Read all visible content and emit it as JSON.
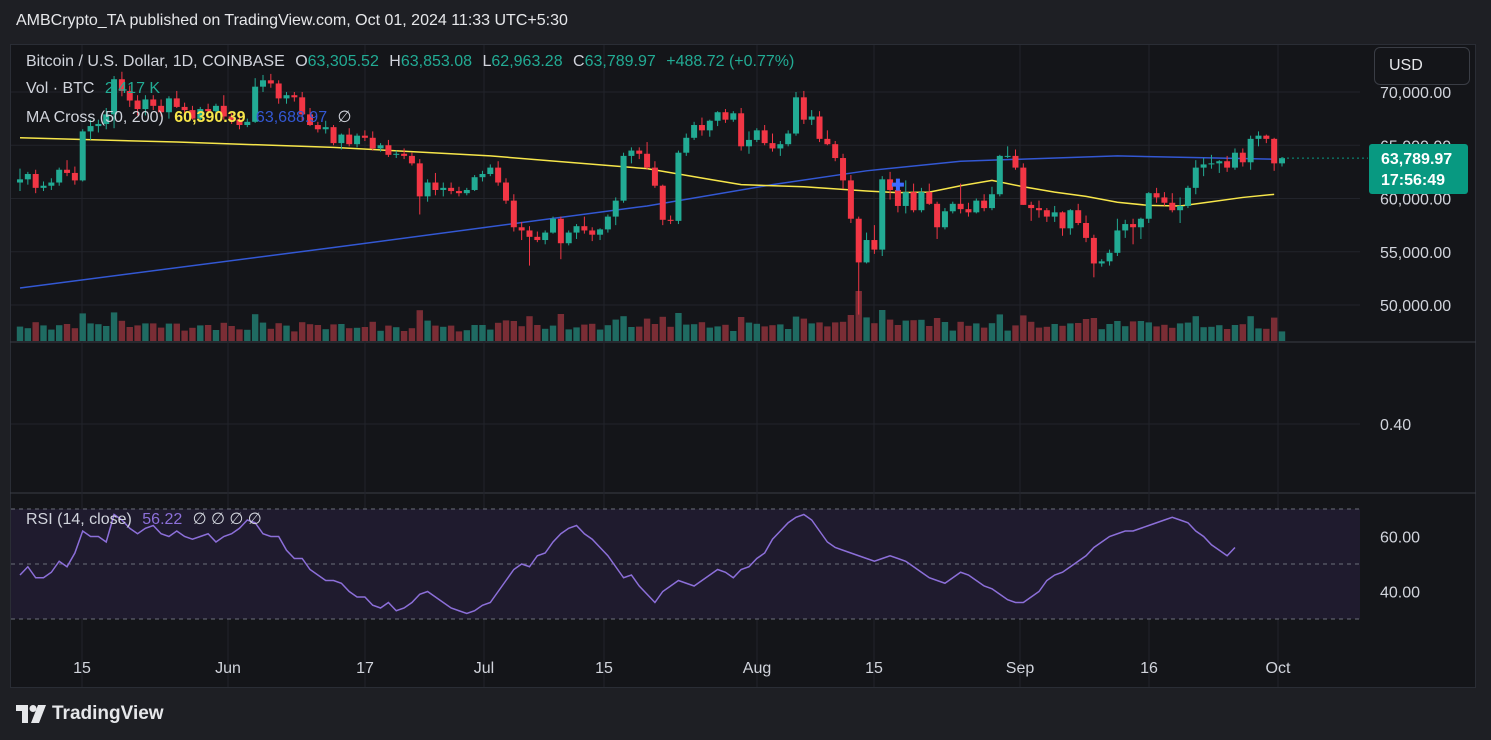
{
  "header": {
    "text": "AMBCrypto_TA published on TradingView.com, Oct 01, 2024 11:33 UTC+5:30"
  },
  "legend": {
    "symbol": "Bitcoin / U.S. Dollar, 1D, COINBASE",
    "o_label": "O",
    "o_value": "63,305.52",
    "h_label": "H",
    "h_value": "63,853.08",
    "l_label": "L",
    "l_value": "62,963.28",
    "c_label": "C",
    "c_value": "63,789.97",
    "change": "+488.72 (+0.77%)",
    "vol_label": "Vol · BTC",
    "vol_value": "2.417 K",
    "ma_label": "MA Cross (50, 200)",
    "ma50_value": "60,390.39",
    "ma200_value": "63,688.97",
    "ma_extra": "∅",
    "rsi_label": "RSI (14, close)",
    "rsi_value": "56.22",
    "rsi_extra": "∅  ∅  ∅  ∅"
  },
  "currency_button": "USD",
  "price_tag": {
    "price": "63,789.97",
    "countdown": "17:56:49"
  },
  "footer": {
    "brand": "TradingView",
    "logo_icon": "tradingview-logo-icon"
  },
  "colors": {
    "up": "#22ab94",
    "down": "#f23645",
    "ma50": "#f7e64a",
    "ma200": "#3358d4",
    "rsi": "#8c6fd9",
    "vol_up": "#1f6b62",
    "vol_down": "#7a2d35",
    "bg": "#141519"
  },
  "chart_data": {
    "type": "candlestick",
    "symbol": "Bitcoin / U.S. Dollar",
    "interval": "1D",
    "price_axis": {
      "ticks": [
        "70,000.00",
        "65,000.00",
        "60,000.00",
        "55,000.00",
        "50,000.00"
      ],
      "ylim": [
        48000,
        71000
      ]
    },
    "x_ticks": [
      "15",
      "Jun",
      "17",
      "Jul",
      "15",
      "Aug",
      "15",
      "Sep",
      "16",
      "Oct"
    ],
    "indicator_pane": {
      "ticks": [
        "0.40"
      ]
    },
    "rsi_axis": {
      "ticks": [
        "60.00",
        "40.00"
      ],
      "ylim": [
        30,
        70
      ],
      "bands": [
        30,
        50,
        70
      ]
    },
    "candles": [
      [
        61500,
        62800,
        60700,
        61800
      ],
      [
        61800,
        62500,
        61300,
        62300
      ],
      [
        62300,
        62700,
        60500,
        61000
      ],
      [
        61000,
        61600,
        60700,
        61200
      ],
      [
        61200,
        61900,
        60800,
        61500
      ],
      [
        61500,
        62900,
        61200,
        62700
      ],
      [
        62700,
        63600,
        62100,
        62400
      ],
      [
        62400,
        63000,
        61300,
        61700
      ],
      [
        61700,
        66500,
        61600,
        66300
      ],
      [
        66300,
        67400,
        65500,
        66800
      ],
      [
        66800,
        67400,
        66200,
        67000
      ],
      [
        67000,
        68500,
        66500,
        67900
      ],
      [
        67900,
        71500,
        66600,
        71200
      ],
      [
        71200,
        71900,
        69600,
        70100
      ],
      [
        70100,
        70600,
        68600,
        69200
      ],
      [
        69200,
        69700,
        67800,
        68400
      ],
      [
        68400,
        69700,
        67800,
        69300
      ],
      [
        69300,
        69700,
        68300,
        68700
      ],
      [
        68700,
        69300,
        67700,
        68100
      ],
      [
        68100,
        69600,
        67500,
        69400
      ],
      [
        69400,
        70100,
        68500,
        68600
      ],
      [
        68600,
        69000,
        67900,
        68300
      ],
      [
        68300,
        68700,
        67400,
        67500
      ],
      [
        67500,
        68600,
        67200,
        68400
      ],
      [
        68400,
        68900,
        67900,
        68200
      ],
      [
        68200,
        68900,
        67900,
        68700
      ],
      [
        68700,
        69700,
        67400,
        67700
      ],
      [
        67700,
        68000,
        67000,
        67400
      ],
      [
        67400,
        67900,
        66500,
        66900
      ],
      [
        66900,
        67500,
        66700,
        67200
      ],
      [
        67200,
        71300,
        67100,
        70500
      ],
      [
        70500,
        71600,
        70000,
        71100
      ],
      [
        71100,
        71700,
        70400,
        70800
      ],
      [
        70800,
        71100,
        68900,
        69400
      ],
      [
        69400,
        70000,
        68900,
        69700
      ],
      [
        69700,
        70000,
        69100,
        69500
      ],
      [
        69500,
        70000,
        67300,
        67900
      ],
      [
        67900,
        68500,
        66800,
        66900
      ],
      [
        66900,
        67200,
        66200,
        66500
      ],
      [
        66500,
        67300,
        66100,
        66700
      ],
      [
        66700,
        66900,
        65000,
        65200
      ],
      [
        65200,
        66100,
        64600,
        66000
      ],
      [
        66000,
        66600,
        64900,
        65100
      ],
      [
        65100,
        66100,
        64800,
        65900
      ],
      [
        65900,
        66400,
        65400,
        65700
      ],
      [
        65700,
        66300,
        64500,
        64700
      ],
      [
        64700,
        65200,
        64400,
        65000
      ],
      [
        65000,
        65500,
        63900,
        64100
      ],
      [
        64100,
        64500,
        63800,
        64200
      ],
      [
        64200,
        64700,
        63700,
        64000
      ],
      [
        64000,
        64300,
        63100,
        63300
      ],
      [
        63300,
        63700,
        58500,
        60200
      ],
      [
        60200,
        61800,
        59700,
        61500
      ],
      [
        61500,
        62400,
        60300,
        60800
      ],
      [
        60800,
        61500,
        60200,
        61000
      ],
      [
        61000,
        61500,
        60400,
        60700
      ],
      [
        60700,
        61100,
        60200,
        60500
      ],
      [
        60500,
        61000,
        60300,
        60800
      ],
      [
        60800,
        62200,
        60700,
        62000
      ],
      [
        62000,
        62600,
        61600,
        62300
      ],
      [
        62300,
        63200,
        62100,
        62900
      ],
      [
        62900,
        63500,
        61200,
        61500
      ],
      [
        61500,
        61900,
        59500,
        59800
      ],
      [
        59800,
        60400,
        56900,
        57300
      ],
      [
        57300,
        57800,
        56100,
        57000
      ],
      [
        57000,
        57400,
        53700,
        56400
      ],
      [
        56400,
        56900,
        55900,
        56100
      ],
      [
        56100,
        57000,
        55700,
        56800
      ],
      [
        56800,
        58300,
        56700,
        58100
      ],
      [
        58100,
        58300,
        54300,
        55800
      ],
      [
        55800,
        57000,
        55600,
        56800
      ],
      [
        56800,
        57600,
        56200,
        57400
      ],
      [
        57400,
        58300,
        56700,
        57000
      ],
      [
        57000,
        57300,
        56000,
        56600
      ],
      [
        56600,
        57200,
        56100,
        57100
      ],
      [
        57100,
        58500,
        56800,
        58300
      ],
      [
        58300,
        60100,
        57500,
        59800
      ],
      [
        59800,
        64300,
        59600,
        64000
      ],
      [
        64000,
        64800,
        63300,
        64500
      ],
      [
        64500,
        64800,
        63700,
        64200
      ],
      [
        64200,
        65300,
        62700,
        62900
      ],
      [
        62900,
        63500,
        61000,
        61200
      ],
      [
        61200,
        61300,
        57500,
        58000
      ],
      [
        58000,
        58400,
        57600,
        57900
      ],
      [
        57900,
        64500,
        57600,
        64300
      ],
      [
        64300,
        66100,
        64000,
        65700
      ],
      [
        65700,
        67200,
        65500,
        66900
      ],
      [
        66900,
        67600,
        65900,
        66400
      ],
      [
        66400,
        67400,
        65800,
        67300
      ],
      [
        67300,
        68200,
        66800,
        68100
      ],
      [
        68100,
        68400,
        67100,
        67400
      ],
      [
        67400,
        68200,
        67200,
        68000
      ],
      [
        68000,
        68500,
        64500,
        64900
      ],
      [
        64900,
        66300,
        64200,
        65500
      ],
      [
        65500,
        66600,
        65300,
        66400
      ],
      [
        66400,
        66900,
        65000,
        65200
      ],
      [
        65200,
        66100,
        64400,
        64700
      ],
      [
        64700,
        65400,
        64000,
        65100
      ],
      [
        65100,
        66400,
        64900,
        66100
      ],
      [
        66100,
        70000,
        65900,
        69500
      ],
      [
        69500,
        70100,
        67000,
        67400
      ],
      [
        67400,
        68300,
        66900,
        67700
      ],
      [
        67700,
        68200,
        65300,
        65600
      ],
      [
        65600,
        66400,
        65000,
        65100
      ],
      [
        65100,
        65400,
        63500,
        63800
      ],
      [
        63800,
        64200,
        60900,
        61700
      ],
      [
        61700,
        62200,
        57700,
        58100
      ],
      [
        58100,
        58300,
        49100,
        54000
      ],
      [
        54000,
        56800,
        53900,
        56100
      ],
      [
        56100,
        57500,
        54800,
        55200
      ],
      [
        55200,
        62100,
        54600,
        61800
      ],
      [
        61800,
        62500,
        59900,
        60800
      ],
      [
        60800,
        61200,
        58700,
        59300
      ],
      [
        59300,
        61700,
        58600,
        60600
      ],
      [
        60600,
        61400,
        58700,
        58900
      ],
      [
        58900,
        61000,
        58700,
        60600
      ],
      [
        60600,
        61400,
        59400,
        59500
      ],
      [
        59500,
        59700,
        56200,
        57300
      ],
      [
        57300,
        59100,
        57100,
        58800
      ],
      [
        58800,
        59700,
        58600,
        59500
      ],
      [
        59500,
        61400,
        58600,
        59000
      ],
      [
        59000,
        59600,
        58300,
        58700
      ],
      [
        58700,
        60000,
        58600,
        59800
      ],
      [
        59800,
        60400,
        58800,
        59100
      ],
      [
        59100,
        61100,
        58900,
        60400
      ],
      [
        60400,
        64100,
        60200,
        64000
      ],
      [
        64000,
        64900,
        63800,
        64000
      ],
      [
        64000,
        64600,
        62700,
        62900
      ],
      [
        62900,
        63300,
        59400,
        59400
      ],
      [
        59400,
        59700,
        57900,
        59100
      ],
      [
        59100,
        59800,
        58200,
        58900
      ],
      [
        58900,
        59100,
        57800,
        58300
      ],
      [
        58300,
        59300,
        57800,
        58700
      ],
      [
        58700,
        58800,
        56500,
        57200
      ],
      [
        57200,
        59000,
        56600,
        58900
      ],
      [
        58900,
        59500,
        57500,
        57700
      ],
      [
        57700,
        58400,
        55900,
        56300
      ],
      [
        56300,
        56600,
        52600,
        53900
      ],
      [
        53900,
        54300,
        53600,
        54100
      ],
      [
        54100,
        55200,
        53700,
        54900
      ],
      [
        54900,
        58100,
        54600,
        57000
      ],
      [
        57000,
        58000,
        56300,
        57600
      ],
      [
        57600,
        58100,
        55700,
        57300
      ],
      [
        57300,
        58200,
        56200,
        58100
      ],
      [
        58100,
        60600,
        57700,
        60500
      ],
      [
        60500,
        61000,
        59600,
        60100
      ],
      [
        60100,
        60600,
        59300,
        59600
      ],
      [
        59600,
        60500,
        58700,
        58900
      ],
      [
        58900,
        60100,
        57700,
        59300
      ],
      [
        59300,
        61200,
        59100,
        61000
      ],
      [
        61000,
        63600,
        60400,
        62900
      ],
      [
        62900,
        63800,
        62100,
        63200
      ],
      [
        63200,
        64100,
        62800,
        63300
      ],
      [
        63300,
        63600,
        62400,
        63500
      ],
      [
        63500,
        64000,
        62500,
        62900
      ],
      [
        62900,
        64700,
        62700,
        64300
      ],
      [
        64300,
        64700,
        63000,
        63400
      ],
      [
        63400,
        65900,
        62700,
        65600
      ],
      [
        65600,
        66300,
        64900,
        65900
      ],
      [
        65900,
        66000,
        65200,
        65600
      ],
      [
        65600,
        65700,
        62600,
        63300
      ],
      [
        63300,
        63900,
        63000,
        63790
      ]
    ],
    "ma50": [
      [
        0,
        65700
      ],
      [
        20,
        65300
      ],
      [
        40,
        64800
      ],
      [
        60,
        64000
      ],
      [
        80,
        62800
      ],
      [
        88,
        61800
      ],
      [
        92,
        61300
      ],
      [
        100,
        61100
      ],
      [
        108,
        60700
      ],
      [
        112,
        60550
      ],
      [
        116,
        60600
      ],
      [
        120,
        61200
      ],
      [
        124,
        61700
      ],
      [
        128,
        61100
      ],
      [
        132,
        60600
      ],
      [
        136,
        60200
      ],
      [
        140,
        59650
      ],
      [
        144,
        59350
      ],
      [
        148,
        59300
      ],
      [
        152,
        59700
      ],
      [
        156,
        60100
      ],
      [
        160,
        60390
      ]
    ],
    "ma200": [
      [
        0,
        51600
      ],
      [
        40,
        55400
      ],
      [
        80,
        59300
      ],
      [
        96,
        61300
      ],
      [
        108,
        62600
      ],
      [
        120,
        63500
      ],
      [
        140,
        64000
      ],
      [
        160,
        63689
      ]
    ],
    "rsi": [
      46,
      49,
      45,
      45,
      47,
      51,
      49,
      54,
      62,
      60,
      60,
      58,
      68,
      66,
      63,
      61,
      63,
      64,
      61,
      60,
      62,
      60,
      59,
      60,
      61,
      58,
      60,
      61,
      63,
      66,
      65,
      61,
      60,
      60,
      55,
      52,
      52,
      48,
      46,
      44,
      44,
      43,
      40,
      38,
      38,
      35,
      34,
      36,
      33,
      34,
      36,
      39,
      40,
      38,
      36,
      34,
      33,
      32,
      33,
      35,
      36,
      40,
      44,
      48,
      50,
      49,
      53,
      54,
      58,
      61,
      63,
      64,
      61,
      59,
      56,
      53,
      49,
      45,
      46,
      42,
      39,
      36,
      40,
      42,
      44,
      43,
      42,
      44,
      46,
      48,
      47,
      45,
      48,
      49,
      52,
      54,
      59,
      62,
      65,
      67,
      68,
      66,
      62,
      58,
      56,
      55,
      54,
      53,
      52,
      51,
      52,
      53,
      52,
      51,
      49,
      47,
      45,
      44,
      43,
      45,
      47,
      46,
      44,
      42,
      41,
      39,
      37,
      36,
      36,
      38,
      40,
      44,
      46,
      47,
      49,
      51,
      53,
      56,
      58,
      60,
      61,
      62,
      62,
      63,
      64,
      65,
      66,
      67,
      66,
      65,
      62,
      60,
      57,
      55,
      53,
      56
    ]
  }
}
